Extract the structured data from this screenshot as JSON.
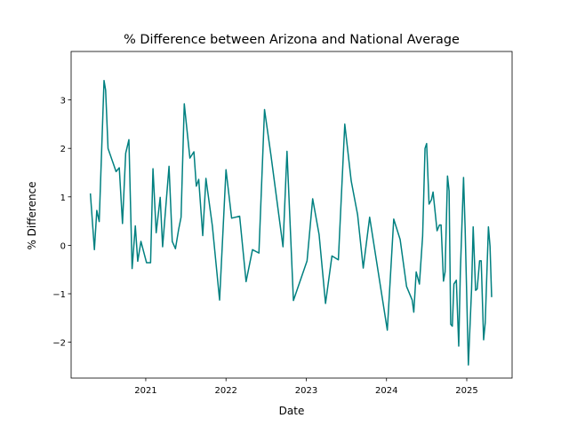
{
  "chart_data": {
    "type": "line",
    "title": "% Difference between Arizona and National Average",
    "x_label": "Date",
    "y_label": "% Difference",
    "x": [
      2020.31,
      2020.36,
      2020.39,
      2020.42,
      2020.48,
      2020.5,
      2020.53,
      2020.63,
      2020.67,
      2020.71,
      2020.75,
      2020.79,
      2020.83,
      2020.87,
      2020.9,
      2020.94,
      2021.01,
      2021.06,
      2021.09,
      2021.13,
      2021.18,
      2021.21,
      2021.29,
      2021.33,
      2021.37,
      2021.41,
      2021.44,
      2021.48,
      2021.55,
      2021.6,
      2021.63,
      2021.66,
      2021.71,
      2021.75,
      2021.83,
      2021.92,
      2022.0,
      2022.07,
      2022.17,
      2022.25,
      2022.33,
      2022.41,
      2022.48,
      2022.56,
      2022.71,
      2022.76,
      2022.84,
      2023.01,
      2023.08,
      2023.16,
      2023.24,
      2023.32,
      2023.4,
      2023.48,
      2023.56,
      2023.64,
      2023.71,
      2023.79,
      2024.01,
      2024.09,
      2024.17,
      2024.25,
      2024.32,
      2024.34,
      2024.37,
      2024.41,
      2024.45,
      2024.48,
      2024.5,
      2024.53,
      2024.56,
      2024.58,
      2024.6,
      2024.63,
      2024.66,
      2024.68,
      2024.71,
      2024.73,
      2024.76,
      2024.78,
      2024.8,
      2024.82,
      2024.84,
      2024.87,
      2024.9,
      2024.92,
      2024.96,
      2024.98,
      2025.02,
      2025.06,
      2025.08,
      2025.11,
      2025.13,
      2025.16,
      2025.18,
      2025.21,
      2025.23,
      2025.27,
      2025.29,
      2025.31
    ],
    "series": [
      {
        "name": "% Difference",
        "color": "#008080",
        "values": [
          1.07,
          -0.09,
          0.72,
          0.49,
          3.4,
          3.2,
          2.0,
          1.52,
          1.6,
          0.45,
          1.9,
          2.18,
          -0.48,
          0.4,
          -0.33,
          0.08,
          -0.36,
          -0.36,
          1.58,
          0.26,
          0.99,
          -0.03,
          1.63,
          0.08,
          -0.07,
          0.33,
          0.58,
          2.92,
          1.8,
          1.93,
          1.22,
          1.36,
          0.2,
          1.38,
          0.4,
          -1.13,
          1.56,
          0.56,
          0.6,
          -0.75,
          -0.09,
          -0.16,
          2.8,
          1.86,
          -0.03,
          1.94,
          -1.14,
          -0.32,
          0.96,
          0.22,
          -1.2,
          -0.22,
          -0.3,
          2.5,
          1.33,
          0.63,
          -0.47,
          0.58,
          -1.75,
          0.54,
          0.12,
          -0.85,
          -1.13,
          -1.38,
          -0.55,
          -0.8,
          0.19,
          2.0,
          2.1,
          0.85,
          0.94,
          1.1,
          0.78,
          0.3,
          0.42,
          0.42,
          -0.74,
          -0.55,
          1.43,
          1.12,
          -1.63,
          -1.67,
          -0.8,
          -0.72,
          -2.08,
          -0.55,
          1.4,
          0.33,
          -2.47,
          -0.9,
          0.38,
          -0.93,
          -0.9,
          -0.32,
          -0.32,
          -1.95,
          -1.6,
          0.38,
          -0.02,
          -1.07
        ]
      }
    ],
    "xlim": [
      2020.07,
      2025.565
    ],
    "xticks": [
      2021,
      2022,
      2023,
      2024,
      2025
    ],
    "ylim": [
      -2.74,
      4.0
    ],
    "yticks": [
      {
        "value": -2,
        "label": "−2"
      },
      {
        "value": -1,
        "label": "−1"
      },
      0,
      1,
      2,
      3
    ]
  }
}
